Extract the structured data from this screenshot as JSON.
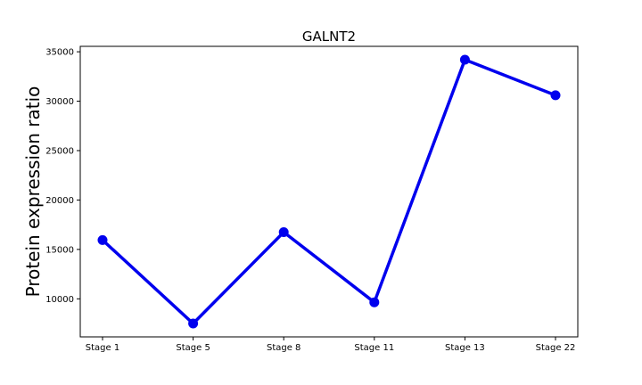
{
  "chart_data": {
    "type": "line",
    "title": "GALNT2",
    "xlabel": "",
    "ylabel": "Protein expression ratio",
    "categories": [
      "Stage 1",
      "Stage 5",
      "Stage 8",
      "Stage 11",
      "Stage 13",
      "Stage 22"
    ],
    "series": [
      {
        "values": [
          15950,
          7500,
          16750,
          9650,
          34200,
          30600
        ],
        "color": "#0000ee"
      }
    ],
    "yticks": [
      10000,
      15000,
      20000,
      25000,
      30000,
      35000
    ],
    "ytick_labels": [
      "10000",
      "15000",
      "20000",
      "25000",
      "30000",
      "35000"
    ],
    "ylim": [
      6150,
      35550
    ],
    "grid": false,
    "legend": "none"
  }
}
